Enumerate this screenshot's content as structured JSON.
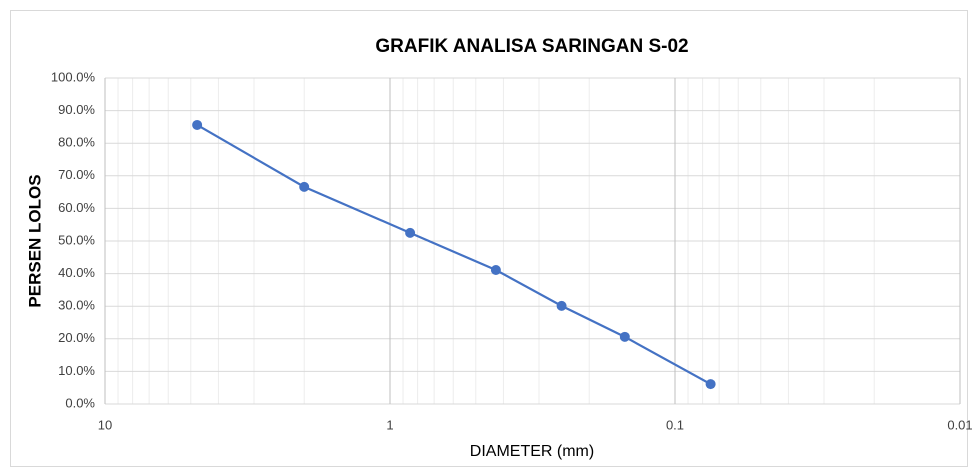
{
  "chart_data": {
    "type": "line",
    "title": "GRAFIK ANALISA SARINGAN S-02",
    "x_label": "DIAMETER (mm)",
    "y_label": "PERSEN LOLOS",
    "x": [
      4.75,
      2.0,
      0.85,
      0.425,
      0.25,
      0.15,
      0.075
    ],
    "series": [
      {
        "name": "S-02",
        "color": "#4472c4",
        "values": [
          85.6,
          66.6,
          52.5,
          41.1,
          30.1,
          20.6,
          6.1
        ]
      }
    ],
    "xlim": [
      10,
      0.01
    ],
    "xticks": [
      10,
      1,
      0.1,
      0.01
    ],
    "x_log": true,
    "ylim": [
      0,
      100
    ],
    "yticks": [
      {
        "value": 0,
        "label": "0.0%"
      },
      {
        "value": 10,
        "label": "10.0%"
      },
      {
        "value": 20,
        "label": "20.0%"
      },
      {
        "value": 30,
        "label": "30.0%"
      },
      {
        "value": 40,
        "label": "40.0%"
      },
      {
        "value": 50,
        "label": "50.0%"
      },
      {
        "value": 60,
        "label": "60.0%"
      },
      {
        "value": 70,
        "label": "70.0%"
      },
      {
        "value": 80,
        "label": "80.0%"
      },
      {
        "value": 90,
        "label": "90.0%"
      },
      {
        "value": 100,
        "label": "100.0%"
      }
    ],
    "grid": true,
    "minor_grid": true
  }
}
